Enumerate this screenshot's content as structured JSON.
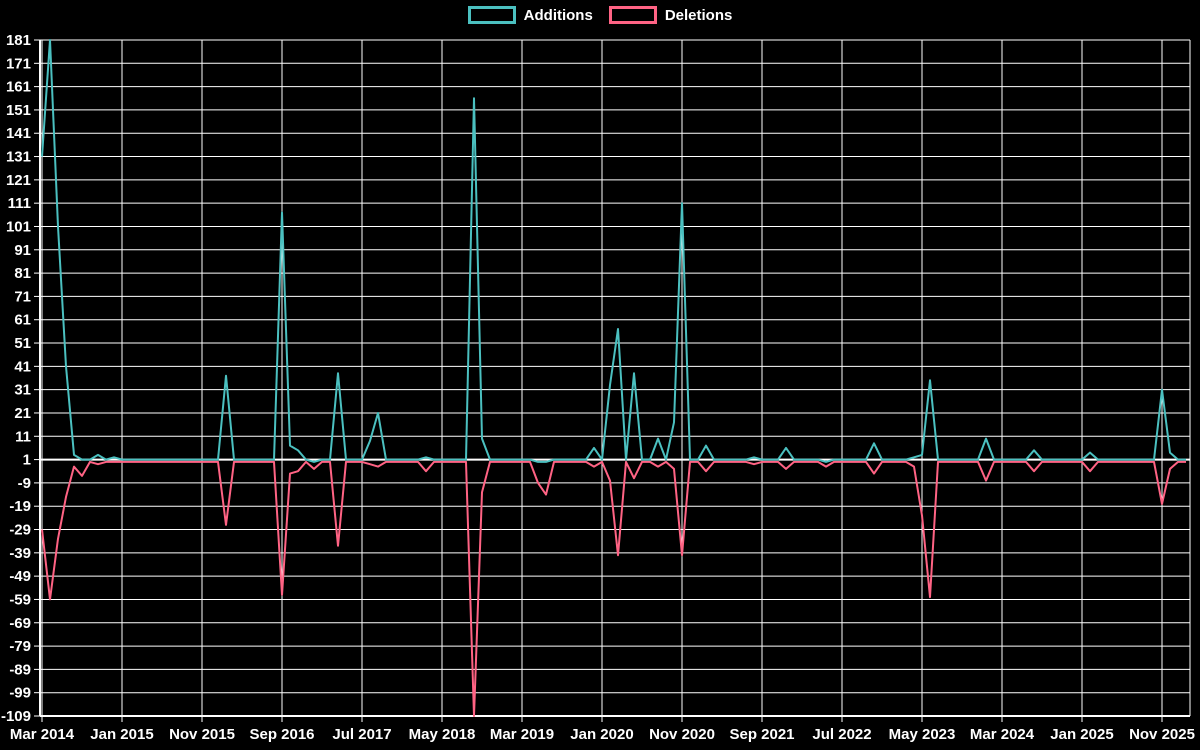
{
  "colors": {
    "background": "#000000",
    "grid": "#ffffff",
    "text": "#ffffff",
    "additions": "#4bc0c0",
    "deletions": "#ff6384"
  },
  "legend": {
    "series": [
      {
        "name": "Additions",
        "color": "#4bc0c0"
      },
      {
        "name": "Deletions",
        "color": "#ff6384"
      }
    ]
  },
  "chart_data": {
    "type": "line",
    "title": "",
    "xlabel": "",
    "ylabel": "",
    "x_start": "2014-03",
    "x_end": "2026-02",
    "x_tick_every_months": 10,
    "x_tick_labels": [
      "Mar 2014",
      "Jan 2015",
      "Nov 2015",
      "Sep 2016",
      "Jul 2017",
      "May 2018",
      "Mar 2019",
      "Jan 2020",
      "Nov 2020",
      "Sep 2021",
      "Jul 2022",
      "May 2023",
      "Mar 2024",
      "Jan 2025",
      "Nov 2025"
    ],
    "ylim": [
      -109,
      181
    ],
    "y_tick_step": 10,
    "grid": true,
    "legend_position": "top-center",
    "baseline": {
      "additions": 1,
      "deletions": 0
    },
    "series_names": [
      "Additions",
      "Deletions"
    ],
    "monthly_nonzero": {
      "2014-03": [
        131,
        -29
      ],
      "2014-04": [
        181,
        -59
      ],
      "2014-05": [
        101,
        -33
      ],
      "2014-06": [
        41,
        -15
      ],
      "2014-07": [
        3,
        -2
      ],
      "2014-08": [
        1,
        -6
      ],
      "2014-10": [
        3,
        -1
      ],
      "2014-12": [
        2,
        0
      ],
      "2016-02": [
        37,
        -27
      ],
      "2016-09": [
        107,
        -57
      ],
      "2016-10": [
        7,
        -5
      ],
      "2016-11": [
        5,
        -4
      ],
      "2017-01": [
        0,
        -3
      ],
      "2017-04": [
        38,
        -36
      ],
      "2017-08": [
        9,
        -1
      ],
      "2017-09": [
        21,
        -2
      ],
      "2018-03": [
        2,
        -4
      ],
      "2018-09": [
        156,
        -109
      ],
      "2018-10": [
        10,
        -13
      ],
      "2019-05": [
        0,
        -9
      ],
      "2019-06": [
        0,
        -14
      ],
      "2019-12": [
        6,
        -2
      ],
      "2020-02": [
        33,
        -8
      ],
      "2020-03": [
        57,
        -40
      ],
      "2020-05": [
        38,
        -7
      ],
      "2020-08": [
        10,
        -2
      ],
      "2020-10": [
        17,
        -3
      ],
      "2020-11": [
        111,
        -40
      ],
      "2021-02": [
        7,
        -4
      ],
      "2021-08": [
        2,
        -1
      ],
      "2021-12": [
        6,
        -3
      ],
      "2022-05": [
        0,
        -2
      ],
      "2022-11": [
        8,
        -5
      ],
      "2023-04": [
        2,
        -2
      ],
      "2023-05": [
        3,
        -23
      ],
      "2023-06": [
        35,
        -58
      ],
      "2024-01": [
        10,
        -8
      ],
      "2024-07": [
        5,
        -4
      ],
      "2025-02": [
        4,
        -4
      ],
      "2025-11": [
        31,
        -18
      ],
      "2025-12": [
        4,
        -3
      ]
    }
  }
}
